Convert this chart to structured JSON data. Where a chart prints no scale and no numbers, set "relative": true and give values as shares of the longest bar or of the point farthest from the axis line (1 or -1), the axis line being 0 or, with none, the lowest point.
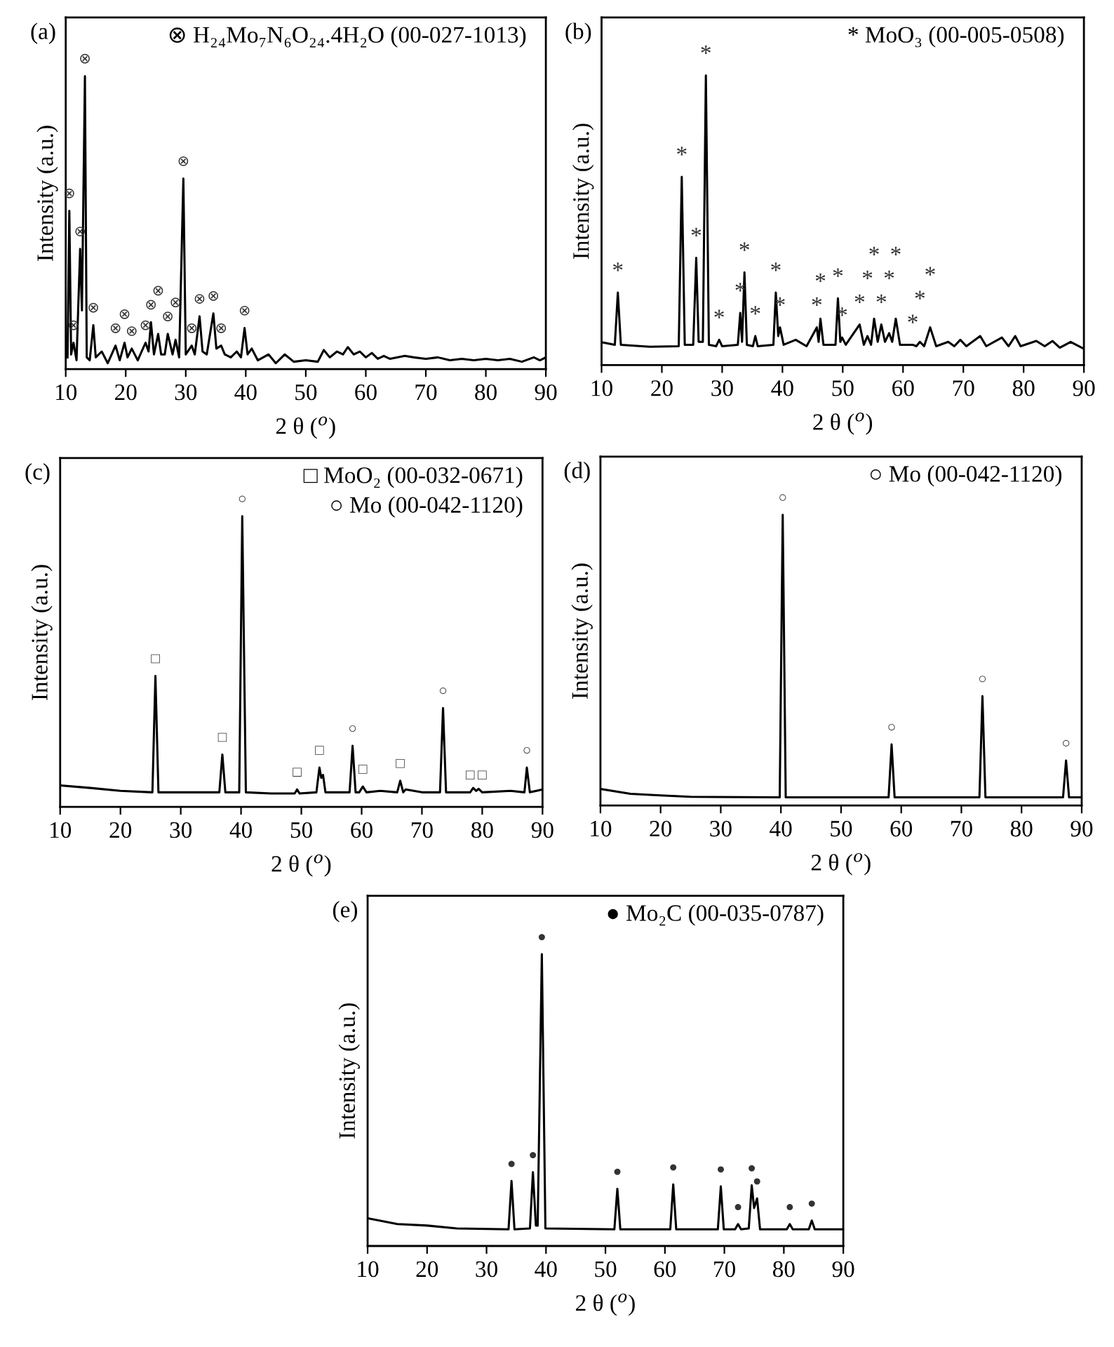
{
  "chart_data": [
    {
      "type": "line",
      "title": "(a)",
      "xlabel": "2 θ ($^{o}$)",
      "ylabel": "Intensity (a.u.)",
      "relative": true,
      "xlim": [
        10,
        90
      ],
      "xticks": [
        10,
        20,
        30,
        40,
        50,
        60,
        70,
        80,
        90
      ],
      "x": [
        10.3,
        10.6,
        10.9,
        11.3,
        11.8,
        12.4,
        12.7,
        13.2,
        13.5,
        14.0,
        14.6,
        15.0,
        16.0,
        17.0,
        18.3,
        19.0,
        19.8,
        20.3,
        21.0,
        22.0,
        23.3,
        23.8,
        24.2,
        24.7,
        25.4,
        25.9,
        26.5,
        27.0,
        27.8,
        28.3,
        28.9,
        29.6,
        30.0,
        31.0,
        31.5,
        32.3,
        32.8,
        33.5,
        34.6,
        35.1,
        35.9,
        36.5,
        37.5,
        38.5,
        39.2,
        39.8,
        40.3,
        41.0,
        42.0,
        43.8,
        45.0,
        46.5,
        48.0,
        50.0,
        52.0,
        53.0,
        54.0,
        55.2,
        56.2,
        57.0,
        58.0,
        59.0,
        60.0,
        61.0,
        62.0,
        63.0,
        64.0,
        66.5,
        68.0,
        70.0,
        72.0,
        74.0,
        76.0,
        78.0,
        80.0,
        82.0,
        84.0,
        86.0,
        88.0,
        89.0,
        90.0
      ],
      "series": [
        {
          "color": "#000000",
          "values": [
            0.04,
            0.54,
            0.05,
            0.09,
            0.03,
            0.41,
            0.2,
            1.0,
            0.04,
            0.03,
            0.15,
            0.04,
            0.06,
            0.02,
            0.08,
            0.03,
            0.09,
            0.04,
            0.07,
            0.03,
            0.09,
            0.06,
            0.16,
            0.05,
            0.12,
            0.05,
            0.05,
            0.12,
            0.05,
            0.1,
            0.04,
            0.65,
            0.05,
            0.08,
            0.05,
            0.18,
            0.06,
            0.05,
            0.19,
            0.07,
            0.08,
            0.05,
            0.04,
            0.06,
            0.04,
            0.14,
            0.05,
            0.07,
            0.03,
            0.05,
            0.02,
            0.05,
            0.025,
            0.03,
            0.025,
            0.065,
            0.04,
            0.06,
            0.05,
            0.075,
            0.05,
            0.06,
            0.04,
            0.055,
            0.035,
            0.045,
            0.035,
            0.045,
            0.04,
            0.035,
            0.04,
            0.03,
            0.035,
            0.03,
            0.035,
            0.03,
            0.035,
            0.025,
            0.04,
            0.03,
            0.04
          ]
        }
      ],
      "annotations": [
        "⊗ H₂₄Mo₇N₆O₂₄.4H₂O (00-027-1013)",
        {
          "text": "⊗",
          "x": 10.6,
          "y": 0.54
        },
        {
          "text": "⊗",
          "x": 11.3,
          "y": 0.09
        },
        {
          "text": "⊗",
          "x": 12.4,
          "y": 0.41
        },
        {
          "text": "⊗",
          "x": 13.2,
          "y": 1.0
        },
        {
          "text": "⊗",
          "x": 14.6,
          "y": 0.15
        },
        {
          "text": "⊗",
          "x": 18.3,
          "y": 0.08
        },
        {
          "text": "⊗",
          "x": 19.8,
          "y": 0.09
        },
        {
          "text": "⊗",
          "x": 21.0,
          "y": 0.07
        },
        {
          "text": "⊗",
          "x": 23.3,
          "y": 0.09
        },
        {
          "text": "⊗",
          "x": 24.2,
          "y": 0.16
        },
        {
          "text": "⊗",
          "x": 25.4,
          "y": 0.12
        },
        {
          "text": "⊗",
          "x": 27.0,
          "y": 0.12
        },
        {
          "text": "⊗",
          "x": 28.3,
          "y": 0.1
        },
        {
          "text": "⊗",
          "x": 29.6,
          "y": 0.65
        },
        {
          "text": "⊗",
          "x": 31.0,
          "y": 0.08
        },
        {
          "text": "⊗",
          "x": 32.3,
          "y": 0.18
        },
        {
          "text": "⊗",
          "x": 34.6,
          "y": 0.19
        },
        {
          "text": "⊗",
          "x": 35.9,
          "y": 0.08
        },
        {
          "text": "⊗",
          "x": 39.8,
          "y": 0.14
        }
      ]
    },
    {
      "type": "line",
      "title": "(b)",
      "xlabel": "2 θ ($^{o}$)",
      "ylabel": "Intensity (a.u.)",
      "relative": true,
      "xlim": [
        10,
        90
      ],
      "xticks": [
        10,
        20,
        30,
        40,
        50,
        60,
        70,
        80,
        90
      ],
      "x": [
        10.0,
        12.2,
        12.7,
        13.2,
        18.0,
        22.8,
        23.3,
        23.8,
        25.2,
        25.7,
        26.1,
        26.8,
        27.3,
        27.8,
        29.0,
        29.5,
        30.0,
        32.6,
        33.0,
        33.3,
        33.7,
        34.1,
        35.1,
        35.5,
        35.9,
        38.5,
        38.9,
        39.3,
        39.6,
        40.2,
        42.2,
        44.0,
        45.7,
        46.0,
        46.3,
        46.8,
        48.8,
        49.2,
        49.6,
        49.9,
        50.5,
        52.8,
        53.5,
        54.1,
        54.7,
        55.2,
        55.8,
        56.4,
        57.0,
        57.7,
        58.2,
        58.8,
        59.5,
        61.6,
        62.2,
        62.8,
        63.5,
        64.5,
        65.5,
        67.5,
        68.5,
        69.5,
        70.5,
        72.8,
        73.8,
        76.4,
        77.5,
        78.6,
        79.5,
        82.1,
        83.5,
        84.8,
        86.0,
        87.8,
        90.0
      ],
      "series": [
        {
          "color": "#000000",
          "values": [
            0.079,
            0.07,
            0.25,
            0.07,
            0.063,
            0.065,
            0.65,
            0.07,
            0.07,
            0.37,
            0.08,
            0.08,
            1.0,
            0.07,
            0.065,
            0.087,
            0.065,
            0.07,
            0.18,
            0.08,
            0.32,
            0.07,
            0.065,
            0.1,
            0.065,
            0.07,
            0.25,
            0.1,
            0.13,
            0.07,
            0.087,
            0.065,
            0.13,
            0.08,
            0.16,
            0.07,
            0.07,
            0.23,
            0.08,
            0.095,
            0.07,
            0.14,
            0.07,
            0.1,
            0.07,
            0.16,
            0.08,
            0.14,
            0.08,
            0.11,
            0.08,
            0.16,
            0.07,
            0.07,
            0.065,
            0.08,
            0.065,
            0.13,
            0.065,
            0.08,
            0.065,
            0.087,
            0.065,
            0.1,
            0.065,
            0.095,
            0.065,
            0.1,
            0.065,
            0.083,
            0.065,
            0.083,
            0.06,
            0.08,
            0.056
          ]
        }
      ],
      "annotations": [
        "* MoO₃ (00-005-0508)",
        {
          "text": "*",
          "x": 12.7,
          "y": 0.25
        },
        {
          "text": "*",
          "x": 23.3,
          "y": 0.65
        },
        {
          "text": "*",
          "x": 25.7,
          "y": 0.37
        },
        {
          "text": "*",
          "x": 27.3,
          "y": 1.0
        },
        {
          "text": "*",
          "x": 29.5,
          "y": 0.087
        },
        {
          "text": "*",
          "x": 33.0,
          "y": 0.18
        },
        {
          "text": "*",
          "x": 33.7,
          "y": 0.32
        },
        {
          "text": "*",
          "x": 35.5,
          "y": 0.1
        },
        {
          "text": "*",
          "x": 38.9,
          "y": 0.25
        },
        {
          "text": "*",
          "x": 39.6,
          "y": 0.13
        },
        {
          "text": "*",
          "x": 45.7,
          "y": 0.13
        },
        {
          "text": "*",
          "x": 46.3,
          "y": 0.16
        },
        {
          "text": "*",
          "x": 49.2,
          "y": 0.23
        },
        {
          "text": "*",
          "x": 49.9,
          "y": 0.095
        },
        {
          "text": "*",
          "x": 52.8,
          "y": 0.14
        },
        {
          "text": "*",
          "x": 54.1,
          "y": 0.1
        },
        {
          "text": "*",
          "x": 55.2,
          "y": 0.16
        },
        {
          "text": "*",
          "x": 56.4,
          "y": 0.14
        },
        {
          "text": "*",
          "x": 57.7,
          "y": 0.11
        },
        {
          "text": "*",
          "x": 58.8,
          "y": 0.16
        },
        {
          "text": "*",
          "x": 61.6,
          "y": 0.07
        },
        {
          "text": "*",
          "x": 62.8,
          "y": 0.08
        },
        {
          "text": "*",
          "x": 64.5,
          "y": 0.13
        }
      ]
    },
    {
      "type": "line",
      "title": "(c)",
      "xlabel": "2 θ ($^{o}$)",
      "ylabel": "Intensity (a.u.)",
      "relative": true,
      "xlim": [
        10,
        90
      ],
      "xticks": [
        10,
        20,
        30,
        40,
        50,
        60,
        70,
        80,
        90
      ],
      "x": [
        10.0,
        15.0,
        20.0,
        25.3,
        25.8,
        26.3,
        36.4,
        36.9,
        37.4,
        39.7,
        40.2,
        40.8,
        45.0,
        48.9,
        49.3,
        49.7,
        52.5,
        53.0,
        53.3,
        53.6,
        54.0,
        58.0,
        58.5,
        59.0,
        59.6,
        60.2,
        60.8,
        63.1,
        65.9,
        66.4,
        66.9,
        67.3,
        70.0,
        73.0,
        73.5,
        74.0,
        78.0,
        78.5,
        79.0,
        79.4,
        80.0,
        84.7,
        87.0,
        87.4,
        87.9,
        90.0
      ],
      "series": [
        {
          "color": "#000000",
          "values": [
            0.074,
            0.065,
            0.055,
            0.05,
            0.45,
            0.05,
            0.05,
            0.18,
            0.05,
            0.05,
            1.0,
            0.05,
            0.046,
            0.046,
            0.06,
            0.046,
            0.05,
            0.135,
            0.1,
            0.11,
            0.05,
            0.05,
            0.21,
            0.05,
            0.05,
            0.07,
            0.05,
            0.055,
            0.05,
            0.09,
            0.05,
            0.06,
            0.05,
            0.05,
            0.34,
            0.05,
            0.05,
            0.065,
            0.055,
            0.062,
            0.05,
            0.055,
            0.05,
            0.135,
            0.05,
            0.06
          ]
        }
      ],
      "annotations": [
        "□ MoO₂ (00-032-0671)",
        "○ Mo (00-042-1120)",
        {
          "text": "□",
          "x": 25.8,
          "y": 0.45
        },
        {
          "text": "□",
          "x": 36.9,
          "y": 0.18
        },
        {
          "text": "□",
          "x": 49.3,
          "y": 0.06
        },
        {
          "text": "□",
          "x": 53.0,
          "y": 0.135
        },
        {
          "text": "□",
          "x": 60.2,
          "y": 0.07
        },
        {
          "text": "□",
          "x": 66.4,
          "y": 0.09
        },
        {
          "text": "□",
          "x": 78.0,
          "y": 0.05
        },
        {
          "text": "□",
          "x": 80.0,
          "y": 0.05
        },
        {
          "text": "○",
          "x": 40.2,
          "y": 1.0
        },
        {
          "text": "○",
          "x": 58.5,
          "y": 0.21
        },
        {
          "text": "○",
          "x": 73.5,
          "y": 0.34
        },
        {
          "text": "○",
          "x": 87.4,
          "y": 0.135
        }
      ]
    },
    {
      "type": "line",
      "title": "(d)",
      "xlabel": "2 θ ($^{o}$)",
      "ylabel": "Intensity (a.u.)",
      "relative": true,
      "xlim": [
        10,
        90
      ],
      "xticks": [
        10,
        20,
        30,
        40,
        50,
        60,
        70,
        80,
        90
      ],
      "x": [
        10.0,
        15.0,
        20.0,
        25.0,
        39.8,
        40.3,
        40.8,
        57.9,
        58.4,
        58.9,
        73.0,
        73.5,
        74.0,
        86.9,
        87.4,
        87.9,
        90.0
      ],
      "series": [
        {
          "color": "#000000",
          "values": [
            0.057,
            0.04,
            0.035,
            0.03,
            0.028,
            1.0,
            0.028,
            0.028,
            0.21,
            0.028,
            0.028,
            0.376,
            0.028,
            0.028,
            0.155,
            0.028,
            0.028
          ]
        }
      ],
      "annotations": [
        "○ Mo (00-042-1120)",
        {
          "text": "○",
          "x": 40.3,
          "y": 1.0
        },
        {
          "text": "○",
          "x": 58.4,
          "y": 0.21
        },
        {
          "text": "○",
          "x": 73.5,
          "y": 0.376
        },
        {
          "text": "○",
          "x": 87.4,
          "y": 0.155
        }
      ]
    },
    {
      "type": "line",
      "title": "(e)",
      "xlabel": "2 θ ($^{o}$)",
      "ylabel": "Intensity (a.u.)",
      "relative": true,
      "xlim": [
        10,
        90
      ],
      "xticks": [
        10,
        20,
        30,
        40,
        50,
        60,
        70,
        80,
        90
      ],
      "x": [
        10.0,
        15.0,
        20.0,
        25.0,
        33.7,
        34.2,
        34.7,
        37.3,
        37.8,
        38.3,
        38.6,
        39.3,
        39.9,
        51.5,
        52.0,
        52.5,
        60.9,
        61.4,
        61.9,
        68.9,
        69.4,
        69.9,
        71.8,
        72.3,
        72.8,
        74.1,
        74.6,
        75.0,
        75.5,
        76.0,
        80.5,
        81.0,
        81.5,
        84.2,
        84.7,
        85.2,
        90.0
      ],
      "series": [
        {
          "color": "#000000",
          "values": [
            0.095,
            0.075,
            0.07,
            0.06,
            0.057,
            0.223,
            0.057,
            0.06,
            0.253,
            0.07,
            0.07,
            1.0,
            0.06,
            0.057,
            0.196,
            0.057,
            0.057,
            0.211,
            0.057,
            0.057,
            0.204,
            0.057,
            0.057,
            0.075,
            0.057,
            0.06,
            0.208,
            0.13,
            0.163,
            0.057,
            0.057,
            0.075,
            0.057,
            0.057,
            0.087,
            0.057,
            0.057
          ]
        }
      ],
      "annotations": [
        "● Mo₂C (00-035-0787)",
        {
          "text": "●",
          "x": 34.2,
          "y": 0.223
        },
        {
          "text": "●",
          "x": 37.8,
          "y": 0.253
        },
        {
          "text": "●",
          "x": 39.3,
          "y": 1.0
        },
        {
          "text": "●",
          "x": 52.0,
          "y": 0.196
        },
        {
          "text": "●",
          "x": 61.4,
          "y": 0.211
        },
        {
          "text": "●",
          "x": 69.4,
          "y": 0.204
        },
        {
          "text": "●",
          "x": 72.3,
          "y": 0.075
        },
        {
          "text": "●",
          "x": 74.6,
          "y": 0.208
        },
        {
          "text": "●",
          "x": 75.5,
          "y": 0.163
        },
        {
          "text": "●",
          "x": 81.0,
          "y": 0.075
        },
        {
          "text": "●",
          "x": 84.7,
          "y": 0.087
        }
      ]
    }
  ]
}
